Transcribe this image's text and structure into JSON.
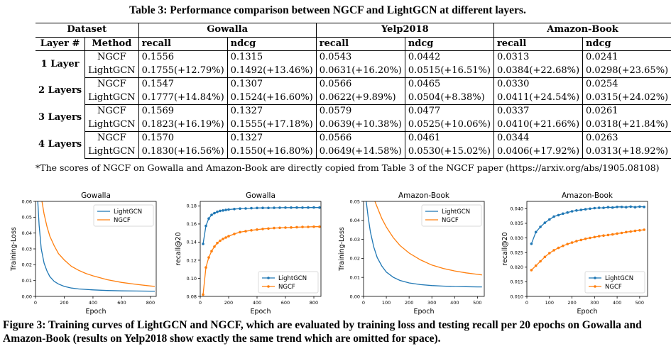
{
  "table": {
    "caption": "Table 3: Performance comparison between NGCF and LightGCN at different layers.",
    "header_row1": [
      "Dataset",
      "Gowalla",
      "Yelp2018",
      "Amazon-Book"
    ],
    "header_row2": [
      "Layer #",
      "Method",
      "recall",
      "ndcg",
      "recall",
      "ndcg",
      "recall",
      "ndcg"
    ],
    "groups": [
      {
        "layer": "1 Layer",
        "rows": [
          {
            "method": "NGCF",
            "cells": [
              "0.1556",
              "0.1315",
              "0.0543",
              "0.0442",
              "0.0313",
              "0.0241"
            ]
          },
          {
            "method": "LightGCN",
            "cells": [
              "0.1755(+12.79%)",
              "0.1492(+13.46%)",
              "0.0631(+16.20%)",
              "0.0515(+16.51%)",
              "0.0384(+22.68%)",
              "0.0298(+23.65%)"
            ]
          }
        ]
      },
      {
        "layer": "2 Layers",
        "rows": [
          {
            "method": "NGCF",
            "cells": [
              "0.1547",
              "0.1307",
              "0.0566",
              "0.0465",
              "0.0330",
              "0.0254"
            ]
          },
          {
            "method": "LightGCN",
            "cells": [
              "0.1777(+14.84%)",
              "0.1524(+16.60%)",
              "0.0622(+9.89%)",
              "0.0504(+8.38%)",
              "0.0411(+24.54%)",
              "0.0315(+24.02%)"
            ]
          }
        ]
      },
      {
        "layer": "3 Layers",
        "rows": [
          {
            "method": "NGCF",
            "cells": [
              "0.1569",
              "0.1327",
              "0.0579",
              "0.0477",
              "0.0337",
              "0.0261"
            ]
          },
          {
            "method": "LightGCN",
            "cells": [
              "0.1823(+16.19%)",
              "0.1555(+17.18%)",
              "0.0639(+10.38%)",
              "0.0525(+10.06%)",
              "0.0410(+21.66%)",
              "0.0318(+21.84%)"
            ]
          }
        ]
      },
      {
        "layer": "4 Layers",
        "rows": [
          {
            "method": "NGCF",
            "cells": [
              "0.1570",
              "0.1327",
              "0.0566",
              "0.0461",
              "0.0344",
              "0.0263"
            ]
          },
          {
            "method": "LightGCN",
            "cells": [
              "0.1830(+16.56%)",
              "0.1550(+16.80%)",
              "0.0649(+14.58%)",
              "0.0530(+15.02%)",
              "0.0406(+17.92%)",
              "0.0313(+18.92%)"
            ]
          }
        ]
      }
    ],
    "footnote": "*The scores of NGCF on Gowalla and Amazon-Book are directly copied from Table 3 of the NGCF paper (https://arxiv.org/abs/1905.08108)"
  },
  "figure_caption": "Figure 3: Training curves of LightGCN and NGCF, which are evaluated by training loss and testing recall per 20 epochs on Gowalla and Amazon-Book (results on Yelp2018 show exactly the same trend which are omitted for space).",
  "colors": {
    "lightgcn": "#1f77b4",
    "ngcf": "#ff7f0e"
  },
  "chart_data": [
    {
      "type": "line",
      "title": "Gowalla",
      "xlabel": "Epoch",
      "ylabel": "Training-Loss",
      "xlim": [
        0,
        840
      ],
      "ylim": [
        0,
        0.06
      ],
      "xticks": [
        "0",
        "200",
        "400",
        "600",
        "800"
      ],
      "yticks": [
        "0.00",
        "0.01",
        "0.02",
        "0.03",
        "0.04",
        "0.05",
        "0.06"
      ],
      "legend": "top-right",
      "markers": false,
      "series": [
        {
          "name": "LightGCN",
          "x": [
            16,
            25,
            40,
            60,
            80,
            100,
            130,
            160,
            200,
            250,
            300,
            400,
            500,
            600,
            700,
            800,
            830
          ],
          "values": [
            0.06,
            0.045,
            0.03,
            0.021,
            0.016,
            0.0125,
            0.0095,
            0.0078,
            0.0063,
            0.0053,
            0.0047,
            0.0041,
            0.0037,
            0.0035,
            0.0034,
            0.0033,
            0.0033
          ]
        },
        {
          "name": "NGCF",
          "x": [
            45,
            60,
            80,
            100,
            130,
            160,
            200,
            250,
            300,
            350,
            400,
            500,
            600,
            700,
            800,
            830
          ],
          "values": [
            0.06,
            0.052,
            0.044,
            0.038,
            0.032,
            0.027,
            0.023,
            0.019,
            0.0165,
            0.0145,
            0.013,
            0.0105,
            0.0088,
            0.0076,
            0.0066,
            0.0063
          ]
        }
      ]
    },
    {
      "type": "line",
      "title": "Gowalla",
      "xlabel": "Epoch",
      "ylabel": "recall@20",
      "xlim": [
        0,
        850
      ],
      "ylim": [
        0.08,
        0.185
      ],
      "xticks": [
        "0",
        "200",
        "400",
        "600",
        "800"
      ],
      "yticks": [
        "0.08",
        "0.10",
        "0.12",
        "0.14",
        "0.16",
        "0.18"
      ],
      "legend": "bottom-right",
      "markers": true,
      "series": [
        {
          "name": "LightGCN",
          "x": [
            20,
            40,
            60,
            80,
            100,
            120,
            140,
            160,
            180,
            200,
            240,
            280,
            320,
            360,
            400,
            440,
            480,
            520,
            560,
            600,
            640,
            680,
            720,
            760,
            800,
            840
          ],
          "values": [
            0.138,
            0.158,
            0.166,
            0.17,
            0.172,
            0.1735,
            0.1745,
            0.175,
            0.1755,
            0.176,
            0.1765,
            0.177,
            0.1772,
            0.1775,
            0.1777,
            0.1778,
            0.1778,
            0.1779,
            0.178,
            0.1781,
            0.1781,
            0.1782,
            0.1781,
            0.1782,
            0.1783,
            0.1782
          ]
        },
        {
          "name": "NGCF",
          "x": [
            20,
            40,
            60,
            80,
            100,
            120,
            140,
            160,
            180,
            200,
            240,
            280,
            320,
            360,
            400,
            440,
            480,
            520,
            560,
            600,
            640,
            680,
            720,
            760,
            800,
            840
          ],
          "values": [
            0.082,
            0.112,
            0.123,
            0.13,
            0.135,
            0.139,
            0.1415,
            0.1435,
            0.145,
            0.1465,
            0.149,
            0.151,
            0.152,
            0.153,
            0.1538,
            0.1545,
            0.155,
            0.1555,
            0.1558,
            0.156,
            0.1562,
            0.1565,
            0.1567,
            0.1568,
            0.157,
            0.157
          ]
        }
      ]
    },
    {
      "type": "line",
      "title": "Amazon-Book",
      "xlabel": "Epoch",
      "ylabel": "Training-Loss",
      "xlim": [
        0,
        530
      ],
      "ylim": [
        0,
        0.05
      ],
      "xticks": [
        "0",
        "100",
        "200",
        "300",
        "400",
        "500"
      ],
      "yticks": [
        "0.00",
        "0.01",
        "0.02",
        "0.03",
        "0.04",
        "0.05"
      ],
      "legend": "top-right",
      "markers": false,
      "series": [
        {
          "name": "LightGCN",
          "x": [
            12,
            20,
            30,
            45,
            60,
            80,
            100,
            130,
            160,
            200,
            250,
            300,
            350,
            400,
            450,
            500,
            520
          ],
          "values": [
            0.05,
            0.042,
            0.034,
            0.026,
            0.0205,
            0.016,
            0.0128,
            0.0101,
            0.0084,
            0.0071,
            0.0062,
            0.0057,
            0.0054,
            0.0052,
            0.0051,
            0.005,
            0.005
          ]
        },
        {
          "name": "NGCF",
          "x": [
            50,
            60,
            80,
            100,
            130,
            160,
            200,
            250,
            300,
            350,
            400,
            450,
            500,
            520
          ],
          "values": [
            0.05,
            0.047,
            0.041,
            0.0365,
            0.031,
            0.0268,
            0.0228,
            0.0192,
            0.0165,
            0.0147,
            0.0134,
            0.0124,
            0.0116,
            0.0113
          ]
        }
      ]
    },
    {
      "type": "line",
      "title": "Amazon-Book",
      "xlabel": "Epoch",
      "ylabel": "recall@20",
      "xlim": [
        0,
        535
      ],
      "ylim": [
        0.01,
        0.0425
      ],
      "xticks": [
        "0",
        "100",
        "200",
        "300",
        "400",
        "500"
      ],
      "yticks": [
        "0.010",
        "0.015",
        "0.020",
        "0.025",
        "0.030",
        "0.035",
        "0.040"
      ],
      "legend": "bottom-right",
      "markers": true,
      "series": [
        {
          "name": "LightGCN",
          "x": [
            20,
            40,
            60,
            80,
            100,
            120,
            140,
            160,
            180,
            200,
            220,
            240,
            260,
            280,
            300,
            320,
            340,
            360,
            380,
            400,
            420,
            440,
            460,
            480,
            500,
            520
          ],
          "values": [
            0.028,
            0.032,
            0.0338,
            0.0352,
            0.0363,
            0.0373,
            0.0378,
            0.0383,
            0.0387,
            0.0391,
            0.0394,
            0.0396,
            0.0398,
            0.04,
            0.0402,
            0.0403,
            0.0403,
            0.0405,
            0.0404,
            0.0406,
            0.0406,
            0.0405,
            0.0407,
            0.0405,
            0.0407,
            0.0406
          ]
        },
        {
          "name": "NGCF",
          "x": [
            20,
            40,
            60,
            80,
            100,
            120,
            140,
            160,
            180,
            200,
            220,
            240,
            260,
            280,
            300,
            320,
            340,
            360,
            380,
            400,
            420,
            440,
            460,
            480,
            500,
            520
          ],
          "values": [
            0.019,
            0.0205,
            0.022,
            0.0235,
            0.0248,
            0.0258,
            0.0266,
            0.0273,
            0.0279,
            0.0284,
            0.0289,
            0.0293,
            0.0297,
            0.03,
            0.0303,
            0.0306,
            0.0308,
            0.031,
            0.0312,
            0.0315,
            0.0317,
            0.032,
            0.0322,
            0.0324,
            0.0326,
            0.0328
          ]
        }
      ]
    }
  ]
}
